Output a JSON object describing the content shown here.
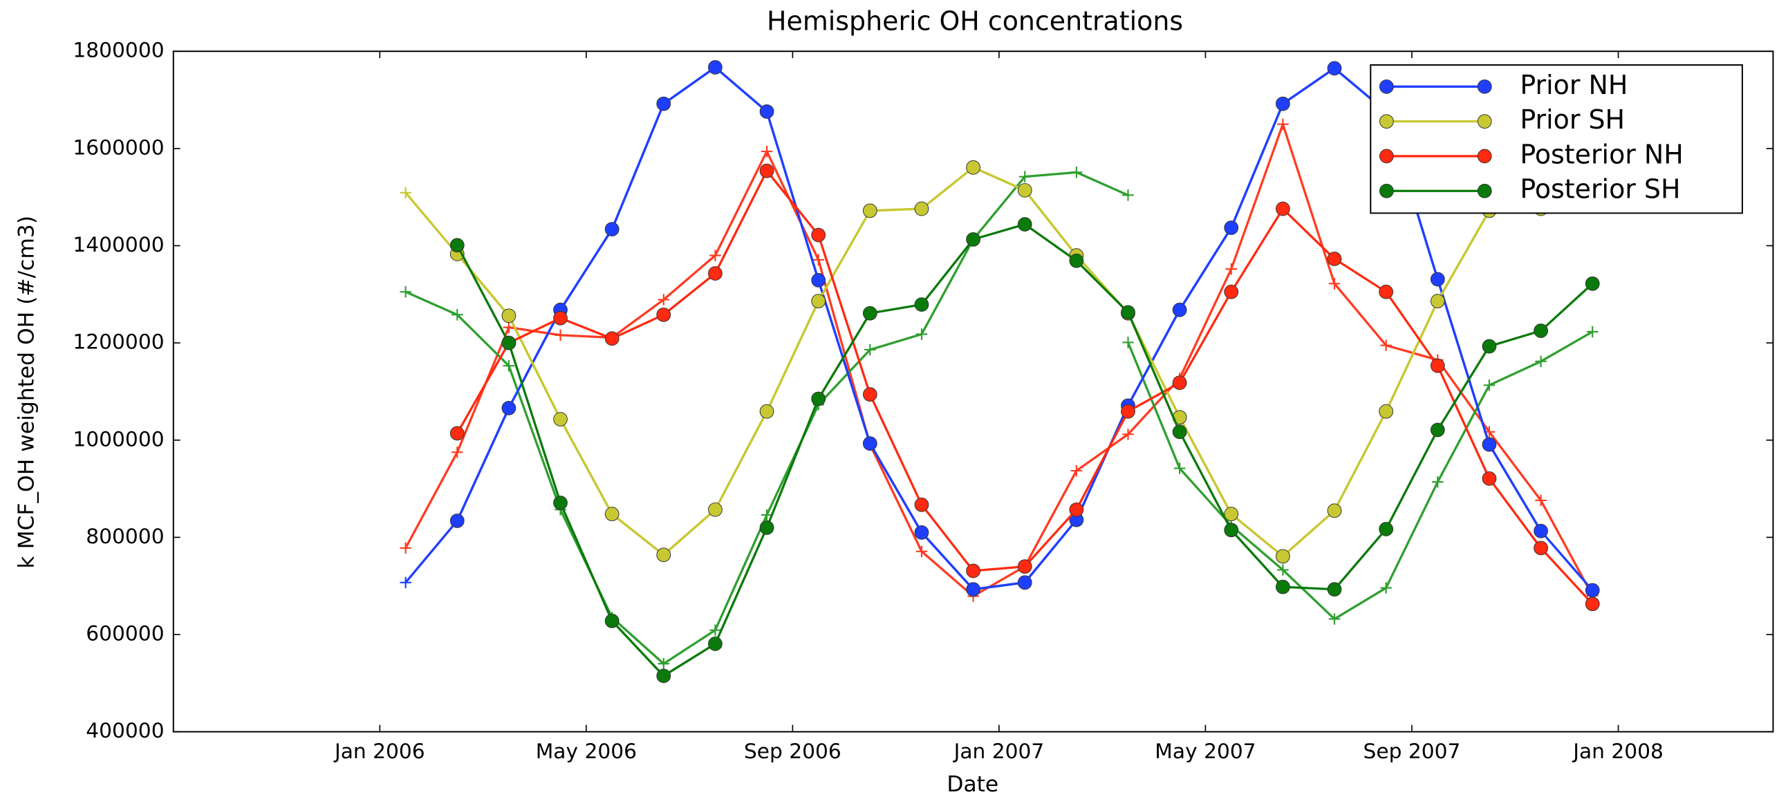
{
  "chart_data": {
    "type": "line",
    "title": "Hemispheric OH concentrations",
    "x_label": "Date",
    "y_label": "k MCF_OH weighted OH (#/cm3)",
    "x": [
      "2006-01",
      "2006-02",
      "2006-03",
      "2006-04",
      "2006-05",
      "2006-06",
      "2006-07",
      "2006-08",
      "2006-09",
      "2006-10",
      "2006-11",
      "2006-12",
      "2007-01",
      "2007-02",
      "2007-03",
      "2007-04",
      "2007-05",
      "2007-06",
      "2007-07",
      "2007-08",
      "2007-09",
      "2007-10",
      "2007-11",
      "2007-12"
    ],
    "xlim": [
      "2005-09",
      "2008-04"
    ],
    "xticks": [
      {
        "value": "2006-01",
        "label": "Jan 2006"
      },
      {
        "value": "2006-05",
        "label": "May 2006"
      },
      {
        "value": "2006-09",
        "label": "Sep 2006"
      },
      {
        "value": "2007-01",
        "label": "Jan 2007"
      },
      {
        "value": "2007-05",
        "label": "May 2007"
      },
      {
        "value": "2007-09",
        "label": "Sep 2007"
      },
      {
        "value": "2008-01",
        "label": "Jan 2008"
      }
    ],
    "ylim": [
      400000,
      1800000
    ],
    "yticks": [
      400000,
      600000,
      800000,
      1000000,
      1200000,
      1400000,
      1600000,
      1800000
    ],
    "legend": "upper right",
    "series": [
      {
        "marker": "+",
        "color": "#1f3fff",
        "values": [
          707000,
          834000,
          1066000,
          1268000,
          1434000,
          1692000,
          1767000,
          1676000,
          1329000,
          993000,
          810000,
          693000,
          707000,
          836000,
          1071000,
          1268000,
          1437000,
          1692000,
          1765000,
          1676000,
          1331000,
          991000,
          813000,
          null
        ]
      },
      {
        "marker": "+",
        "color": "#c8c832",
        "values": [
          1509000,
          1383000,
          1256000,
          1043000,
          848000,
          764000,
          857000,
          1059000,
          1286000,
          1472000,
          1476000,
          1561000,
          1514000,
          1380000,
          1261000,
          1047000,
          848000,
          761000,
          855000,
          1059000,
          1286000,
          1472000,
          1476000,
          null
        ]
      },
      {
        "marker": "+",
        "color": "#ff3b22",
        "values": [
          778000,
          975000,
          1232000,
          1216000,
          1211000,
          1289000,
          1380000,
          1594000,
          1371000,
          991000,
          771000,
          679000,
          740000,
          937000,
          1012000,
          1127000,
          1352000,
          1650000,
          1322000,
          1195000,
          1165000,
          1017000,
          876000,
          680000
        ]
      },
      {
        "marker": "+",
        "color": "#2f9f2f",
        "values": [
          1305000,
          1258000,
          1153000,
          857000,
          635000,
          540000,
          609000,
          846000,
          1073000,
          1186000,
          1218000,
          1413000,
          1542000,
          1551000,
          1504000,
          null,
          null,
          null,
          null,
          null,
          null,
          null,
          null,
          null
        ]
      },
      {
        "marker": "+",
        "color": "#2f9f2f",
        "values": [
          null,
          null,
          null,
          null,
          null,
          null,
          null,
          null,
          null,
          null,
          null,
          null,
          null,
          null,
          1201000,
          942000,
          824000,
          733000,
          632000,
          696000,
          914000,
          1113000,
          1162000,
          1223000
        ]
      },
      {
        "name": "Prior NH",
        "marker": "o",
        "color": "#1f3fff",
        "values": [
          null,
          834000,
          1066000,
          1268000,
          1434000,
          1692000,
          1767000,
          1676000,
          1329000,
          993000,
          810000,
          693000,
          707000,
          836000,
          1071000,
          1268000,
          1437000,
          1692000,
          1765000,
          1676000,
          1331000,
          991000,
          813000,
          691000
        ]
      },
      {
        "name": "Prior SH",
        "marker": "o",
        "color": "#c8c832",
        "values": [
          null,
          1383000,
          1256000,
          1043000,
          848000,
          764000,
          857000,
          1059000,
          1286000,
          1472000,
          1476000,
          1561000,
          1514000,
          1380000,
          1261000,
          1047000,
          848000,
          761000,
          855000,
          1059000,
          1286000,
          1472000,
          1476000,
          1561000
        ]
      },
      {
        "name": "Posterior NH",
        "marker": "o",
        "color": "#ff2a10",
        "values": [
          null,
          1014000,
          1200000,
          1251000,
          1209000,
          1258000,
          1343000,
          1554000,
          1422000,
          1094000,
          867000,
          731000,
          740000,
          857000,
          1059000,
          1118000,
          1305000,
          1476000,
          1373000,
          1305000,
          1153000,
          921000,
          778000,
          663000
        ]
      },
      {
        "name": "Posterior SH",
        "marker": "o",
        "color": "#0a7a0a",
        "values": [
          null,
          1401000,
          1200000,
          871000,
          628000,
          515000,
          581000,
          820000,
          1085000,
          1261000,
          1279000,
          1413000,
          1444000,
          1369000,
          1263000,
          1017000,
          815000,
          698000,
          693000,
          817000,
          1021000,
          1193000,
          1225000,
          1322000
        ]
      }
    ]
  }
}
